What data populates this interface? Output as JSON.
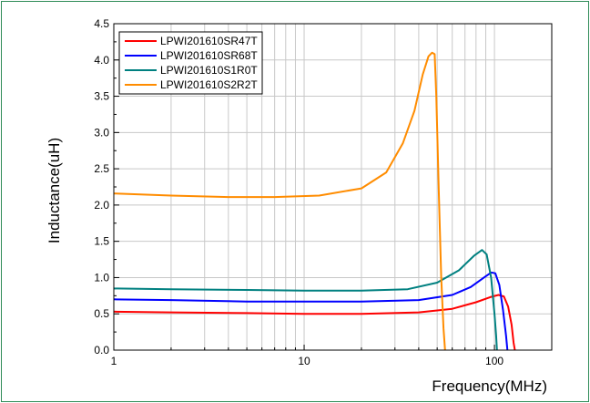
{
  "chart_data": {
    "type": "line",
    "title": "",
    "xlabel": "Frequency(MHz)",
    "ylabel": "Inductance(uH)",
    "x_scale": "log",
    "xlim": [
      1,
      200
    ],
    "ylim": [
      0,
      4.5
    ],
    "grid": true,
    "legend_position": "top-left",
    "x_ticks": [
      {
        "value": 1,
        "label": "1"
      },
      {
        "value": 10,
        "label": "10"
      },
      {
        "value": 100,
        "label": "100"
      }
    ],
    "y_ticks": [
      {
        "value": 0,
        "label": "0.0"
      },
      {
        "value": 0.5,
        "label": "0.5"
      },
      {
        "value": 1.0,
        "label": "1.0"
      },
      {
        "value": 1.5,
        "label": "1.5"
      },
      {
        "value": 2.0,
        "label": "2.0"
      },
      {
        "value": 2.5,
        "label": "2.5"
      },
      {
        "value": 3.0,
        "label": "3.0"
      },
      {
        "value": 3.5,
        "label": "3.5"
      },
      {
        "value": 4.0,
        "label": "4.0"
      },
      {
        "value": 4.5,
        "label": "4.5"
      }
    ],
    "series": [
      {
        "name": "LPWI201610SR47T",
        "color": "#ff0000",
        "points": [
          [
            1,
            0.53
          ],
          [
            2,
            0.52
          ],
          [
            5,
            0.51
          ],
          [
            10,
            0.5
          ],
          [
            20,
            0.5
          ],
          [
            40,
            0.52
          ],
          [
            60,
            0.57
          ],
          [
            80,
            0.66
          ],
          [
            95,
            0.73
          ],
          [
            105,
            0.76
          ],
          [
            112,
            0.74
          ],
          [
            118,
            0.6
          ],
          [
            123,
            0.35
          ],
          [
            126,
            0.1
          ],
          [
            128,
            0.0
          ]
        ]
      },
      {
        "name": "LPWI201610SR68T",
        "color": "#0000ff",
        "points": [
          [
            1,
            0.7
          ],
          [
            2,
            0.69
          ],
          [
            5,
            0.67
          ],
          [
            10,
            0.67
          ],
          [
            20,
            0.67
          ],
          [
            40,
            0.69
          ],
          [
            60,
            0.76
          ],
          [
            75,
            0.87
          ],
          [
            88,
            1.0
          ],
          [
            96,
            1.07
          ],
          [
            101,
            1.06
          ],
          [
            106,
            0.9
          ],
          [
            111,
            0.55
          ],
          [
            115,
            0.2
          ],
          [
            117,
            0.0
          ]
        ]
      },
      {
        "name": "LPWI201610S1R0T",
        "color": "#008080",
        "points": [
          [
            1,
            0.85
          ],
          [
            2,
            0.84
          ],
          [
            5,
            0.83
          ],
          [
            10,
            0.82
          ],
          [
            20,
            0.82
          ],
          [
            35,
            0.84
          ],
          [
            50,
            0.93
          ],
          [
            65,
            1.1
          ],
          [
            78,
            1.3
          ],
          [
            86,
            1.38
          ],
          [
            91,
            1.32
          ],
          [
            96,
            1.0
          ],
          [
            100,
            0.5
          ],
          [
            102,
            0.2
          ],
          [
            103,
            0.0
          ]
        ]
      },
      {
        "name": "LPWI201610S2R2T",
        "color": "#ff8c00",
        "points": [
          [
            1,
            2.16
          ],
          [
            2,
            2.13
          ],
          [
            4,
            2.11
          ],
          [
            7,
            2.11
          ],
          [
            12,
            2.13
          ],
          [
            20,
            2.23
          ],
          [
            27,
            2.45
          ],
          [
            33,
            2.85
          ],
          [
            38,
            3.3
          ],
          [
            42,
            3.8
          ],
          [
            45,
            4.05
          ],
          [
            47,
            4.1
          ],
          [
            48.5,
            4.08
          ],
          [
            49.5,
            3.5
          ],
          [
            51,
            2.2
          ],
          [
            52.5,
            1.0
          ],
          [
            54,
            0.3
          ],
          [
            55,
            0.0
          ]
        ]
      }
    ]
  }
}
